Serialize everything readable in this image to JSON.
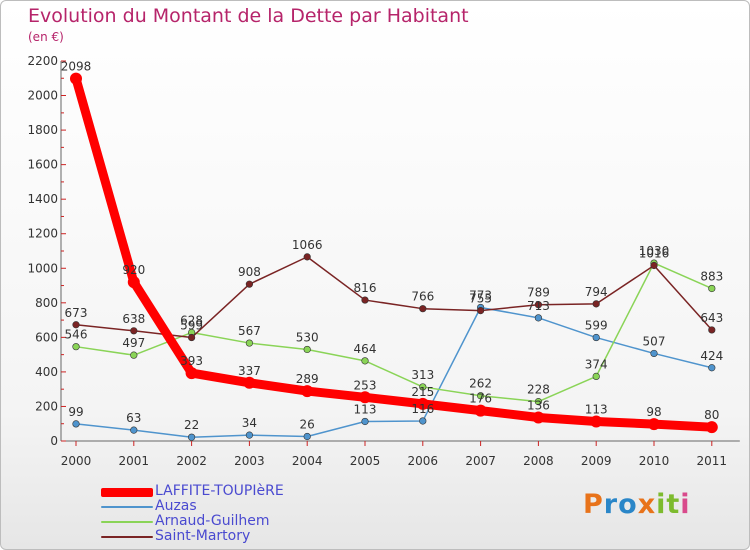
{
  "header": {
    "title": "Evolution du Montant de la Dette par Habitant",
    "subtitle": "(en €)"
  },
  "logo": {
    "text": "Proxiti",
    "colors": [
      "#e8731a",
      "#2a86c8",
      "#2a86c8",
      "#e8731a",
      "#7dbb2e",
      "#7dbb2e",
      "#d94a8c"
    ]
  },
  "chart_data": {
    "type": "line",
    "title": "Evolution du Montant de la Dette par Habitant",
    "subtitle": "(en €)",
    "xlabel": "",
    "ylabel": "",
    "x": [
      "2000",
      "2001",
      "2002",
      "2003",
      "2004",
      "2005",
      "2006",
      "2007",
      "2008",
      "2009",
      "2010",
      "2011"
    ],
    "ylim": [
      0,
      2200
    ],
    "yticks": [
      0,
      200,
      400,
      600,
      800,
      1000,
      1200,
      1400,
      1600,
      1800,
      2000,
      2200
    ],
    "grid": false,
    "legend_position": "bottom-left",
    "series": [
      {
        "name": "LAFFITE-TOUPIèRE",
        "color": "#ff0000",
        "values": [
          2098,
          920,
          393,
          337,
          289,
          253,
          215,
          176,
          136,
          113,
          98,
          80
        ],
        "labels": [
          "2098",
          "920",
          "393",
          "337",
          "289",
          "253",
          "215",
          "176",
          "136",
          "113",
          "98",
          "80"
        ]
      },
      {
        "name": "Auzas",
        "color": "#4f94cd",
        "values": [
          99,
          63,
          22,
          34,
          26,
          113,
          116,
          773,
          713,
          599,
          507,
          424
        ],
        "labels": [
          "99",
          "63",
          "22",
          "34",
          "26",
          "113",
          "116",
          "773",
          "713",
          "599",
          "507",
          "424"
        ]
      },
      {
        "name": "Arnaud-Guilhem",
        "color": "#8ad457",
        "values": [
          546,
          497,
          628,
          567,
          530,
          464,
          313,
          262,
          228,
          374,
          1030,
          883
        ],
        "labels": [
          "546",
          "497",
          "628",
          "567",
          "530",
          "464",
          "313",
          "262",
          "228",
          "374",
          "1030",
          "883"
        ]
      },
      {
        "name": "Saint-Martory",
        "color": "#7a2424",
        "values": [
          673,
          638,
          599,
          908,
          1066,
          816,
          766,
          755,
          789,
          794,
          1016,
          643
        ],
        "labels": [
          "673",
          "638",
          "599",
          "908",
          "1066",
          "816",
          "766",
          "755",
          "789",
          "794",
          "1016",
          "643"
        ]
      }
    ]
  }
}
